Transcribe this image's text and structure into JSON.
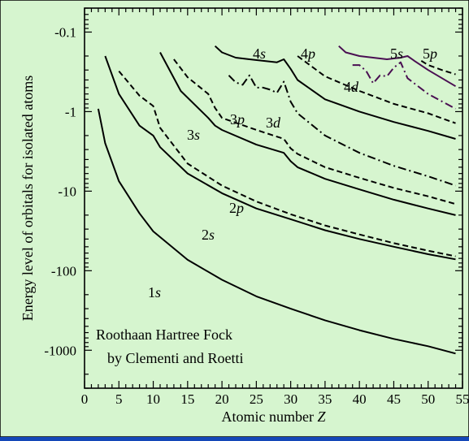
{
  "chart_data": {
    "type": "line",
    "xlabel": "Atomic number Z",
    "ylabel": "Energy level of orbitals for isolated atoms",
    "xlim": [
      0,
      55
    ],
    "ylim": [
      -3000,
      -0.05
    ],
    "y_scale": "log-magnitude",
    "x_ticks": [
      "0",
      "5",
      "10",
      "15",
      "20",
      "25",
      "30",
      "35",
      "40",
      "45",
      "50",
      "55"
    ],
    "y_ticks": [
      {
        "label": "-0.1",
        "value": -0.1
      },
      {
        "label": "-1",
        "value": -1
      },
      {
        "label": "-10",
        "value": -10
      },
      {
        "label": "-100",
        "value": -100
      },
      {
        "label": "-1000",
        "value": -1000
      }
    ],
    "annotation": [
      "Roothaan Hartree Fock",
      "by Clementi and Roetti"
    ],
    "series": [
      {
        "name": "1s",
        "style": "solid",
        "color": "#000000",
        "x": [
          2,
          3,
          5,
          8,
          10,
          15,
          20,
          25,
          30,
          35,
          40,
          45,
          50,
          54
        ],
        "y": [
          -0.92,
          -2.5,
          -7.5,
          -19,
          -32,
          -73,
          -130,
          -210,
          -300,
          -420,
          -560,
          -720,
          -890,
          -1100
        ]
      },
      {
        "name": "2s",
        "style": "solid",
        "color": "#000000",
        "x": [
          3,
          5,
          8,
          10,
          11,
          15,
          20,
          25,
          30,
          35,
          40,
          45,
          50,
          54
        ],
        "y": [
          -0.2,
          -0.6,
          -1.5,
          -2.0,
          -2.8,
          -6.0,
          -10.6,
          -16.5,
          -22.5,
          -31,
          -40,
          -50,
          -62,
          -72
        ]
      },
      {
        "name": "2p",
        "style": "dashed",
        "color": "#000000",
        "x": [
          5,
          8,
          10,
          11,
          15,
          20,
          25,
          30,
          35,
          40,
          45,
          50,
          54
        ],
        "y": [
          -0.31,
          -0.63,
          -0.85,
          -1.6,
          -4.5,
          -8.5,
          -13.5,
          -19.5,
          -27,
          -35,
          -45,
          -56,
          -66
        ]
      },
      {
        "name": "3s",
        "style": "solid",
        "color": "#000000",
        "x": [
          11,
          14,
          18,
          19,
          20,
          25,
          29,
          30,
          31,
          35,
          40,
          45,
          50,
          54
        ],
        "y": [
          -0.18,
          -0.55,
          -1.2,
          -1.5,
          -1.7,
          -2.6,
          -3.3,
          -4.2,
          -5.0,
          -7.0,
          -9.5,
          -12.8,
          -16.5,
          -20
        ]
      },
      {
        "name": "3p",
        "style": "dashed",
        "color": "#000000",
        "x": [
          13,
          15,
          18,
          19,
          20,
          25,
          29,
          30,
          31,
          35,
          40,
          45,
          50,
          54
        ],
        "y": [
          -0.22,
          -0.37,
          -0.6,
          -0.9,
          -1.2,
          -1.7,
          -2.2,
          -2.9,
          -3.4,
          -5.0,
          -6.8,
          -9.1,
          -11.6,
          -14.5
        ]
      },
      {
        "name": "3d",
        "style": "dashdot",
        "color": "#000000",
        "x": [
          21,
          22,
          23,
          24,
          25,
          26,
          27,
          28,
          29,
          30,
          31,
          35,
          40,
          45,
          50,
          54
        ],
        "y": [
          -0.35,
          -0.43,
          -0.46,
          -0.35,
          -0.5,
          -0.5,
          -0.53,
          -0.58,
          -0.42,
          -0.75,
          -1.05,
          -2.0,
          -3.3,
          -4.8,
          -6.5,
          -8.5
        ]
      },
      {
        "name": "4s",
        "style": "solid",
        "color": "#000000",
        "x": [
          19,
          20,
          22,
          24,
          26,
          28,
          29,
          30,
          31,
          35,
          40,
          45,
          50,
          54
        ],
        "y": [
          -0.15,
          -0.18,
          -0.21,
          -0.22,
          -0.23,
          -0.24,
          -0.22,
          -0.29,
          -0.4,
          -0.7,
          -1.0,
          -1.35,
          -1.75,
          -2.2
        ]
      },
      {
        "name": "4p",
        "style": "dashed",
        "color": "#000000",
        "x": [
          31,
          35,
          40,
          45,
          50,
          54
        ],
        "y": [
          -0.2,
          -0.36,
          -0.55,
          -0.8,
          -1.05,
          -1.4
        ]
      },
      {
        "name": "4d",
        "style": "dashdot",
        "color": "#4a0f52",
        "x": [
          39,
          40,
          41,
          42,
          43,
          44,
          45,
          46,
          47,
          50,
          54
        ],
        "y": [
          -0.26,
          -0.26,
          -0.31,
          -0.44,
          -0.35,
          -0.36,
          -0.28,
          -0.24,
          -0.38,
          -0.6,
          -0.92
        ]
      },
      {
        "name": "5s",
        "style": "solid",
        "color": "#4a0f52",
        "x": [
          37,
          38,
          40,
          42,
          44,
          46,
          47,
          48,
          50,
          54
        ],
        "y": [
          -0.15,
          -0.18,
          -0.2,
          -0.21,
          -0.22,
          -0.21,
          -0.2,
          -0.23,
          -0.3,
          -0.48
        ]
      },
      {
        "name": "5p",
        "style": "dashed",
        "color": "#000000",
        "x": [
          49,
          50,
          52,
          54
        ],
        "y": [
          -0.23,
          -0.26,
          -0.3,
          -0.34
        ]
      }
    ]
  }
}
